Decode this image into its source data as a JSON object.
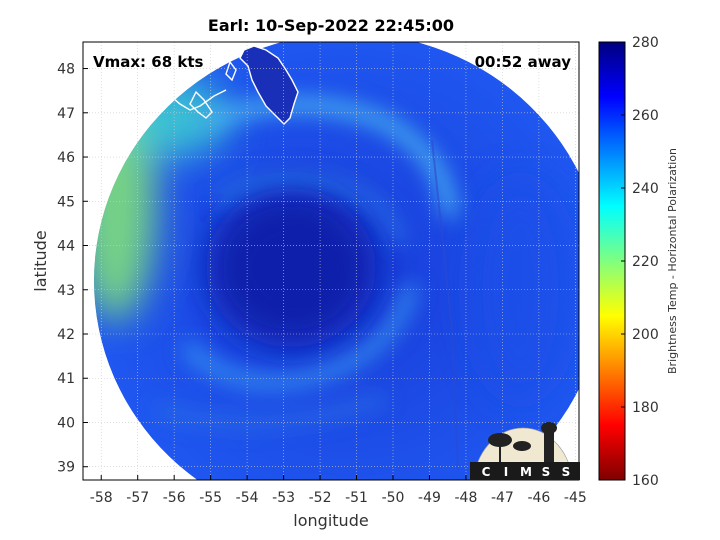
{
  "chart_data": {
    "type": "heatmap",
    "title": "Earl: 10-Sep-2022 22:45:00",
    "xlabel": "longitude",
    "ylabel": "latitude",
    "xlim": [
      -58.5,
      -44.9
    ],
    "ylim": [
      38.7,
      48.6
    ],
    "x_ticks": [
      -58,
      -57,
      -56,
      -55,
      -54,
      -53,
      -52,
      -51,
      -50,
      -49,
      -48,
      -47,
      -46,
      -45
    ],
    "y_ticks": [
      39,
      40,
      41,
      42,
      43,
      44,
      45,
      46,
      47,
      48
    ],
    "grid": true,
    "annotations": {
      "vmax": "Vmax: 68 kts",
      "time_away": "00:52 away"
    },
    "storm_center": {
      "lon": -52.7,
      "lat": 43.6
    },
    "swath": {
      "center_lon": -51.2,
      "center_lat": 43.2,
      "radius_lon": 7.0,
      "radius_lat": 5.6
    },
    "colorbar": {
      "label": "Brightness Temp - Horizontal Polarization",
      "min": 160,
      "max": 280,
      "ticks": [
        160,
        180,
        200,
        220,
        240,
        260,
        280
      ],
      "colormap": [
        "#7f0000",
        "#ff0000",
        "#ff8000",
        "#ffff00",
        "#80ff80",
        "#00ffff",
        "#0080ff",
        "#0000ff",
        "#00007f"
      ]
    },
    "field_regions": [
      {
        "name": "storm core",
        "lon": -52.8,
        "lat": 43.5,
        "value": 272
      },
      {
        "name": "western edge",
        "lon": -57.6,
        "lat": 45.0,
        "value": 228
      },
      {
        "name": "northwest coast",
        "lon": -56.0,
        "lat": 46.9,
        "value": 236
      },
      {
        "name": "rainband arc",
        "lon": -53.6,
        "lat": 46.4,
        "value": 247
      },
      {
        "name": "southwest band",
        "lon": -54.5,
        "lat": 41.8,
        "value": 246
      },
      {
        "name": "east swath",
        "lon": -46.5,
        "lat": 43.0,
        "value": 258
      }
    ]
  },
  "logo": {
    "text": "CIMSS"
  },
  "colors": {
    "land_outline": "#ffffff",
    "background": "#ffffff",
    "grid": "#dddddd"
  }
}
